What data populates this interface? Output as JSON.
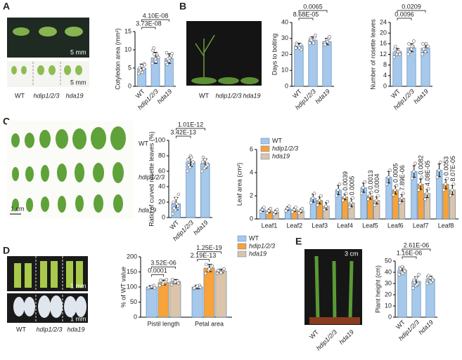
{
  "panels": [
    "A",
    "B",
    "C",
    "D",
    "E"
  ],
  "photos": {
    "A": {
      "labels": [
        "WT",
        "hdip1/2/3",
        "hda19"
      ],
      "scales": [
        "5 mm",
        "5 mm"
      ]
    },
    "B": {
      "labels": [
        "WT",
        "hdip1/2/3",
        "hda19"
      ]
    },
    "C": {
      "labels": [
        "WT",
        "hdip1/2/3",
        "hda19"
      ],
      "scales": [
        "1 cm"
      ]
    },
    "D": {
      "labels": [
        "WT",
        "hdip1/2/3",
        "hda19"
      ],
      "scales": [
        "1 mm",
        "1 mm"
      ]
    },
    "E": {
      "labels": [
        "WT",
        "hdip1/2/3",
        "hda19"
      ],
      "scales": [
        "3 cm"
      ]
    }
  },
  "chart_data": [
    {
      "type": "bar",
      "y_label": "Cotyledon area (mm²)",
      "categories": [
        "WT",
        "hdip1/2/3",
        "hda19"
      ],
      "values": [
        4.9,
        7.8,
        7.6
      ],
      "errors": [
        1.2,
        1.5,
        1.3
      ],
      "points": [
        [
          3.5,
          4.2,
          4.8,
          5.0,
          5.6,
          6.2,
          4.0,
          3.8,
          5.9,
          4.5
        ],
        [
          6.2,
          7.0,
          8.5,
          9.8,
          7.5,
          8.0,
          10.5,
          6.8,
          7.9,
          8.8
        ],
        [
          6.5,
          7.2,
          8.0,
          9.2,
          7.0,
          8.4,
          6.0,
          7.8,
          9.0,
          7.5
        ]
      ],
      "color": "#a6c8ea",
      "ylim": [
        0,
        15
      ],
      "yticks": [
        0,
        5,
        10,
        15
      ],
      "comparisons": [
        {
          "label": "3.73E-08",
          "groups": [
            "WT",
            "hdip1/2/3"
          ]
        },
        {
          "label": "4.10E-08",
          "groups": [
            "WT",
            "hda19"
          ]
        }
      ]
    },
    {
      "type": "bar",
      "y_label": "Days to bolting",
      "categories": [
        "WT",
        "hdip1/2/3",
        "hda19"
      ],
      "values": [
        25.5,
        29,
        28
      ],
      "errors": [
        1.5,
        2,
        2
      ],
      "points": [
        [
          24,
          25,
          26,
          27,
          25,
          23,
          26,
          24
        ],
        [
          27,
          29,
          31,
          30,
          28,
          32,
          29,
          27
        ],
        [
          26,
          28,
          30,
          27,
          29,
          31,
          26,
          28
        ]
      ],
      "color": "#a6c8ea",
      "ylim": [
        0,
        40
      ],
      "yticks": [
        0,
        10,
        20,
        30,
        40
      ],
      "comparisons": [
        {
          "label": "8.68E-05",
          "groups": [
            "WT",
            "hdip1/2/3"
          ]
        },
        {
          "label": "0.0065",
          "groups": [
            "WT",
            "hda19"
          ]
        }
      ]
    },
    {
      "type": "bar",
      "y_label": "Number of rosette leaves",
      "categories": [
        "WT",
        "hdip1/2/3",
        "hda19"
      ],
      "values": [
        13,
        14.5,
        14.3
      ],
      "errors": [
        1.2,
        1.5,
        1.5
      ],
      "points": [
        [
          11,
          12,
          13,
          14,
          13,
          12,
          15,
          13
        ],
        [
          12,
          14,
          15,
          16,
          14,
          17,
          13,
          15
        ],
        [
          12,
          14,
          15,
          16,
          13,
          15,
          14,
          16
        ]
      ],
      "color": "#a6c8ea",
      "ylim": [
        0,
        24
      ],
      "yticks": [
        0,
        4,
        8,
        12,
        16,
        20,
        24
      ],
      "comparisons": [
        {
          "label": "0.0096",
          "groups": [
            "WT",
            "hdip1/2/3"
          ]
        },
        {
          "label": "0.0209",
          "groups": [
            "WT",
            "hda19"
          ]
        }
      ]
    },
    {
      "type": "bar",
      "y_label": "Ratio of curved rosette leaves (%)",
      "categories": [
        "WT",
        "hdip1/2/3",
        "hda19"
      ],
      "values": [
        18,
        72,
        70
      ],
      "errors": [
        8,
        6,
        6
      ],
      "points": [
        [
          5,
          10,
          15,
          20,
          25,
          30,
          12,
          18
        ],
        [
          60,
          65,
          70,
          75,
          80,
          72,
          68,
          78
        ],
        [
          60,
          64,
          70,
          72,
          75,
          68,
          78,
          66
        ]
      ],
      "color": "#a6c8ea",
      "ylim": [
        0,
        100
      ],
      "yticks": [
        0,
        20,
        40,
        60,
        80,
        100
      ],
      "comparisons": [
        {
          "label": "3.42E-13",
          "groups": [
            "WT",
            "hdip1/2/3"
          ]
        },
        {
          "label": "1.01E-12",
          "groups": [
            "WT",
            "hda19"
          ]
        }
      ]
    },
    {
      "type": "grouped_bar",
      "y_label": "Leaf area (cm²)",
      "categories": [
        "Leaf1",
        "Leaf2",
        "Leaf3",
        "Leaf4",
        "Leaf5",
        "Leaf6",
        "Leaf7",
        "Leaf8"
      ],
      "ylim": [
        0,
        6
      ],
      "yticks": [
        0,
        2,
        4,
        6
      ],
      "legend": "upper left",
      "series": [
        {
          "name": "WT",
          "color": "#a6c8ea",
          "values": [
            0.8,
            0.9,
            1.8,
            2.5,
            2.7,
            3.6,
            4.1,
            4.2
          ],
          "errors": [
            0.15,
            0.15,
            0.35,
            0.4,
            0.4,
            0.5,
            0.5,
            0.55
          ],
          "points": [
            [
              0.6,
              0.8,
              1.0
            ],
            [
              0.7,
              0.9,
              1.1
            ],
            [
              1.4,
              1.8,
              2.2
            ],
            [
              2.0,
              2.5,
              3.0
            ],
            [
              2.2,
              2.7,
              3.2
            ],
            [
              3.0,
              3.6,
              4.2
            ],
            [
              3.5,
              4.1,
              4.8
            ],
            [
              3.6,
              4.2,
              4.9
            ]
          ]
        },
        {
          "name": "hdip1/2/3",
          "color": "#f7a23a",
          "values": [
            0.7,
            0.8,
            1.6,
            1.9,
            2.0,
            2.5,
            3.0,
            3.0
          ],
          "errors": [
            0.15,
            0.15,
            0.3,
            0.25,
            0.3,
            0.35,
            0.45,
            0.4
          ],
          "points": [
            [
              0.5,
              0.7,
              0.9
            ],
            [
              0.6,
              0.8,
              1.0
            ],
            [
              1.2,
              1.6,
              2.0
            ],
            [
              1.6,
              1.9,
              2.2
            ],
            [
              1.7,
              2.0,
              2.3
            ],
            [
              2.1,
              2.5,
              2.9
            ],
            [
              2.5,
              3.0,
              3.6
            ],
            [
              2.5,
              3.0,
              3.5
            ]
          ],
          "p_values": [
            null,
            null,
            null,
            "0.0039",
            "0.0013",
            "0.0005",
            "0.0082",
            "0.0053"
          ]
        },
        {
          "name": "hda19",
          "color": "#dcc4aa",
          "values": [
            0.6,
            0.7,
            1.1,
            1.4,
            1.6,
            1.8,
            2.2,
            2.5
          ],
          "errors": [
            0.15,
            0.15,
            0.3,
            0.35,
            0.3,
            0.3,
            0.35,
            0.4
          ],
          "points": [
            [
              0.4,
              0.6,
              0.8
            ],
            [
              0.5,
              0.7,
              0.9
            ],
            [
              0.8,
              1.1,
              1.5
            ],
            [
              1.0,
              1.4,
              1.8
            ],
            [
              1.2,
              1.6,
              2.0
            ],
            [
              1.4,
              1.8,
              2.2
            ],
            [
              1.7,
              2.2,
              2.6
            ],
            [
              2.0,
              2.5,
              3.0
            ]
          ],
          "p_values": [
            null,
            null,
            null,
            "0.0005",
            "0.0004",
            "7.89E-06",
            "4.08E-05",
            "8.07E-05"
          ]
        }
      ]
    },
    {
      "type": "grouped_bar",
      "y_label": "% of WT value",
      "categories": [
        "Pistil length",
        "Petal area"
      ],
      "ylim": [
        0,
        200
      ],
      "yticks": [
        0,
        50,
        100,
        150,
        200
      ],
      "legend": "upper right",
      "series": [
        {
          "name": "WT",
          "color": "#a6c8ea",
          "values": [
            100,
            100
          ],
          "errors": [
            5,
            6
          ],
          "points": [
            [
              95,
              100,
              105,
              98,
              102,
              97
            ],
            [
              95,
              100,
              105,
              97,
              103,
              99
            ]
          ]
        },
        {
          "name": "hdip1/2/3",
          "color": "#f7a23a",
          "values": [
            115,
            163
          ],
          "errors": [
            8,
            12
          ],
          "points": [
            [
              105,
              110,
              118,
              122,
              115,
              125
            ],
            [
              145,
              155,
              165,
              175,
              160,
              170
            ]
          ]
        },
        {
          "name": "hda19",
          "color": "#dcc4aa",
          "values": [
            118,
            153
          ],
          "errors": [
            7,
            6
          ],
          "points": [
            [
              108,
              115,
              120,
              125,
              118,
              112
            ],
            [
              145,
              150,
              158,
              155,
              148,
              160
            ]
          ]
        }
      ],
      "comparisons": [
        {
          "label": "0.0001",
          "category": "Pistil length",
          "series": [
            "WT",
            "hdip1/2/3"
          ]
        },
        {
          "label": "3.52E-06",
          "category": "Pistil length",
          "series": [
            "WT",
            "hda19"
          ]
        },
        {
          "label": "2.19E-13",
          "category": "Petal area",
          "series": [
            "WT",
            "hdip1/2/3"
          ]
        },
        {
          "label": "1.25E-19",
          "category": "Petal area",
          "series": [
            "WT",
            "hda19"
          ]
        }
      ]
    },
    {
      "type": "bar",
      "y_label": "Plant height (cm)",
      "categories": [
        "WT",
        "hdip1/2/3",
        "hda19"
      ],
      "values": [
        42,
        32,
        34
      ],
      "errors": [
        2.5,
        4,
        2.5
      ],
      "points": [
        [
          38,
          40,
          42,
          44,
          45,
          41,
          43,
          39
        ],
        [
          26,
          28,
          30,
          33,
          35,
          38,
          31,
          29
        ],
        [
          30,
          32,
          34,
          36,
          35,
          33,
          37,
          31
        ]
      ],
      "color": "#a6c8ea",
      "ylim": [
        0,
        50
      ],
      "yticks": [
        0,
        10,
        20,
        30,
        40,
        50
      ],
      "comparisons": [
        {
          "label": "1.16E-06",
          "groups": [
            "WT",
            "hdip1/2/3"
          ]
        },
        {
          "label": "2.61E-06",
          "groups": [
            "WT",
            "hda19"
          ]
        }
      ]
    }
  ]
}
